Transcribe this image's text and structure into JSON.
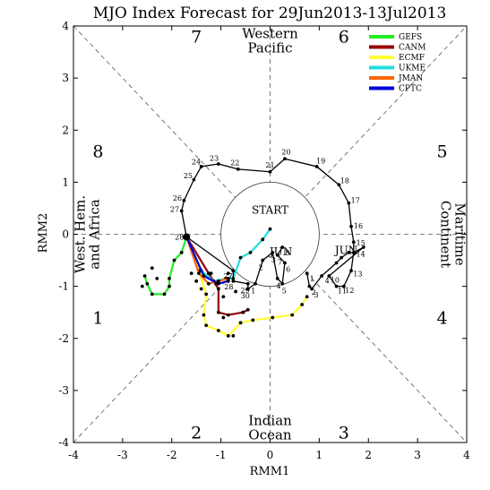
{
  "chart_data": {
    "type": "line",
    "title": "MJO Index Forecast for 29Jun2013-13Jul2013",
    "xlabel": "RMM1",
    "ylabel": "RMM2",
    "xlim": [
      -4,
      4
    ],
    "ylim": [
      -4,
      4
    ],
    "xticks": [
      "-4",
      "-3",
      "-2",
      "-1",
      "0",
      "1",
      "2",
      "3",
      "4"
    ],
    "yticks": [
      "-4",
      "-3",
      "-2",
      "-1",
      "0",
      "1",
      "2",
      "3",
      "4"
    ],
    "phases": [
      {
        "label": "1",
        "x": -3.5,
        "y": -1.6
      },
      {
        "label": "2",
        "x": -1.5,
        "y": -3.8
      },
      {
        "label": "3",
        "x": 1.5,
        "y": -3.8
      },
      {
        "label": "4",
        "x": 3.5,
        "y": -1.6
      },
      {
        "label": "5",
        "x": 3.5,
        "y": 1.6
      },
      {
        "label": "6",
        "x": 1.5,
        "y": 3.8
      },
      {
        "label": "7",
        "x": -1.5,
        "y": 3.8
      },
      {
        "label": "8",
        "x": -3.5,
        "y": 1.6
      }
    ],
    "regions": [
      {
        "name": "western-pacific",
        "lines": [
          "Western",
          "Pacific"
        ],
        "x": 0,
        "y": 3.72,
        "rotate": 0
      },
      {
        "name": "indian-ocean",
        "lines": [
          "Indian",
          "Ocean"
        ],
        "x": 0,
        "y": -3.72,
        "rotate": 0
      },
      {
        "name": "west-hem-africa",
        "lines": [
          "West. Hem.",
          "and Africa"
        ],
        "x": -3.72,
        "y": 0,
        "rotate": -90
      },
      {
        "name": "maritime-continent",
        "lines": [
          "Maritime",
          "Continent"
        ],
        "x": 3.72,
        "y": 0,
        "rotate": 90
      }
    ],
    "start_label": "START",
    "unit_circle_radius": 1,
    "month_labels": [
      {
        "text": "JUN",
        "x": 1.55,
        "y": -0.38
      },
      {
        "text": "JUN",
        "x": 0.22,
        "y": -0.4
      }
    ],
    "legend": {
      "position": "top-right",
      "entries": [
        {
          "name": "GEFS",
          "color": "#22ee22"
        },
        {
          "name": "CANM",
          "color": "#990000"
        },
        {
          "name": "ECMF",
          "color": "#ffff33"
        },
        {
          "name": "UKME",
          "color": "#22dddd"
        },
        {
          "name": "JMAN",
          "color": "#ff6600"
        },
        {
          "name": "CPTC",
          "color": "#0000dd"
        }
      ]
    },
    "observed": {
      "color": "#000000",
      "points": [
        {
          "x": 0.75,
          "y": -0.75,
          "label": "1"
        },
        {
          "x": 0.8,
          "y": -1.0,
          "label": "2"
        },
        {
          "x": 0.85,
          "y": -1.05,
          "label": "3"
        },
        {
          "x": 1.05,
          "y": -0.8,
          "label": "4"
        },
        {
          "x": 1.35,
          "y": -0.55,
          "label": ""
        },
        {
          "x": 1.45,
          "y": -0.45,
          "label": ""
        },
        {
          "x": 1.6,
          "y": -0.35,
          "label": ""
        },
        {
          "x": 1.7,
          "y": -0.35,
          "label": ""
        },
        {
          "x": 1.9,
          "y": -0.25,
          "label": ""
        },
        {
          "x": 1.2,
          "y": -0.8,
          "label": "10"
        },
        {
          "x": 1.35,
          "y": -1.0,
          "label": "11"
        },
        {
          "x": 1.5,
          "y": -1.0,
          "label": "12"
        },
        {
          "x": 1.65,
          "y": -0.7,
          "label": "13"
        },
        {
          "x": 1.7,
          "y": -0.35,
          "label": "14"
        },
        {
          "x": 1.7,
          "y": -0.15,
          "label": "15"
        },
        {
          "x": 1.65,
          "y": 0.15,
          "label": "16"
        },
        {
          "x": 1.6,
          "y": 0.6,
          "label": "17"
        },
        {
          "x": 1.4,
          "y": 0.95,
          "label": "18"
        },
        {
          "x": 0.95,
          "y": 1.3,
          "label": "19"
        },
        {
          "x": 0.3,
          "y": 1.45,
          "label": "20"
        },
        {
          "x": 0.0,
          "y": 1.2,
          "label": "21"
        },
        {
          "x": -0.65,
          "y": 1.25,
          "label": "22"
        },
        {
          "x": -1.05,
          "y": 1.35,
          "label": "23"
        },
        {
          "x": -1.4,
          "y": 1.3,
          "label": "24"
        },
        {
          "x": -1.55,
          "y": 1.05,
          "label": "25"
        },
        {
          "x": -1.75,
          "y": 0.65,
          "label": "26"
        },
        {
          "x": -1.8,
          "y": 0.45,
          "label": "27"
        },
        {
          "x": -1.7,
          "y": -0.05,
          "label": "28"
        }
      ]
    },
    "recent": {
      "color": "#000000",
      "points": [
        {
          "x": -1.7,
          "y": -0.05,
          "label": ""
        },
        {
          "x": -0.75,
          "y": -0.7,
          "label": "27"
        },
        {
          "x": -0.75,
          "y": -0.9,
          "label": "28"
        },
        {
          "x": -0.45,
          "y": -0.95,
          "label": "29"
        },
        {
          "x": -0.45,
          "y": -1.05,
          "label": "30"
        },
        {
          "x": -0.3,
          "y": -0.95,
          "label": "1"
        },
        {
          "x": -0.15,
          "y": -0.5,
          "label": "2"
        },
        {
          "x": 0.05,
          "y": -0.35,
          "label": "3"
        },
        {
          "x": 0.15,
          "y": -0.85,
          "label": "4"
        },
        {
          "x": 0.25,
          "y": -0.95,
          "label": "5"
        },
        {
          "x": 0.3,
          "y": -0.55,
          "label": "6"
        },
        {
          "x": 0.15,
          "y": -0.4,
          "label": "7"
        },
        {
          "x": 0.25,
          "y": -0.25,
          "label": "8"
        }
      ]
    },
    "forecasts": [
      {
        "name": "GEFS",
        "color": "#22ee22",
        "points": [
          [
            -1.7,
            -0.05
          ],
          [
            -1.8,
            -0.35
          ],
          [
            -1.95,
            -0.5
          ],
          [
            -2.05,
            -0.85
          ],
          [
            -2.05,
            -1.0
          ],
          [
            -2.15,
            -1.15
          ],
          [
            -2.4,
            -1.15
          ],
          [
            -2.5,
            -0.95
          ],
          [
            -2.55,
            -0.8
          ]
        ]
      },
      {
        "name": "CANM",
        "color": "#990000",
        "points": [
          [
            -1.7,
            -0.05
          ],
          [
            -1.25,
            -0.75
          ],
          [
            -1.05,
            -1.05
          ],
          [
            -1.05,
            -1.5
          ],
          [
            -0.85,
            -1.55
          ],
          [
            -0.55,
            -1.5
          ],
          [
            -0.45,
            -1.45
          ]
        ]
      },
      {
        "name": "ECMF",
        "color": "#ffff33",
        "points": [
          [
            -1.7,
            -0.05
          ],
          [
            -1.45,
            -0.7
          ],
          [
            -1.3,
            -1.15
          ],
          [
            -1.35,
            -1.55
          ],
          [
            -1.3,
            -1.75
          ],
          [
            -1.05,
            -1.85
          ],
          [
            -0.85,
            -1.95
          ],
          [
            -0.6,
            -1.7
          ],
          [
            -0.35,
            -1.65
          ],
          [
            0.05,
            -1.6
          ],
          [
            0.45,
            -1.55
          ],
          [
            0.65,
            -1.35
          ],
          [
            0.75,
            -1.2
          ]
        ]
      },
      {
        "name": "UKME",
        "color": "#22dddd",
        "points": [
          [
            -1.7,
            -0.05
          ],
          [
            -1.4,
            -0.7
          ],
          [
            -1.15,
            -0.9
          ],
          [
            -0.9,
            -0.85
          ],
          [
            -0.75,
            -0.85
          ],
          [
            -0.6,
            -0.45
          ],
          [
            -0.4,
            -0.35
          ],
          [
            -0.15,
            -0.1
          ],
          [
            0.0,
            0.1
          ]
        ]
      },
      {
        "name": "JMAN",
        "color": "#ff6600",
        "points": [
          [
            -1.7,
            -0.05
          ],
          [
            -1.45,
            -0.75
          ],
          [
            -1.25,
            -0.95
          ],
          [
            -1.05,
            -0.9
          ],
          [
            -0.85,
            -0.85
          ]
        ]
      },
      {
        "name": "CPTC",
        "color": "#0000dd",
        "points": [
          [
            -1.7,
            -0.05
          ],
          [
            -1.35,
            -0.8
          ],
          [
            -1.05,
            -0.95
          ],
          [
            -0.85,
            -0.9
          ]
        ]
      }
    ],
    "ensemble_scatter": {
      "color": "#000000",
      "points": [
        [
          -2.4,
          -0.65
        ],
        [
          -2.3,
          -0.85
        ],
        [
          -2.6,
          -1.0
        ],
        [
          -1.6,
          -0.75
        ],
        [
          -1.5,
          -0.9
        ],
        [
          -1.4,
          -1.05
        ],
        [
          -1.2,
          -0.75
        ],
        [
          -1.1,
          -0.95
        ],
        [
          -0.95,
          -1.2
        ],
        [
          -0.85,
          -0.75
        ],
        [
          -0.7,
          -1.1
        ],
        [
          -0.95,
          -1.6
        ],
        [
          -0.75,
          -1.95
        ]
      ]
    },
    "start_point": {
      "x": -1.7,
      "y": -0.05
    }
  }
}
